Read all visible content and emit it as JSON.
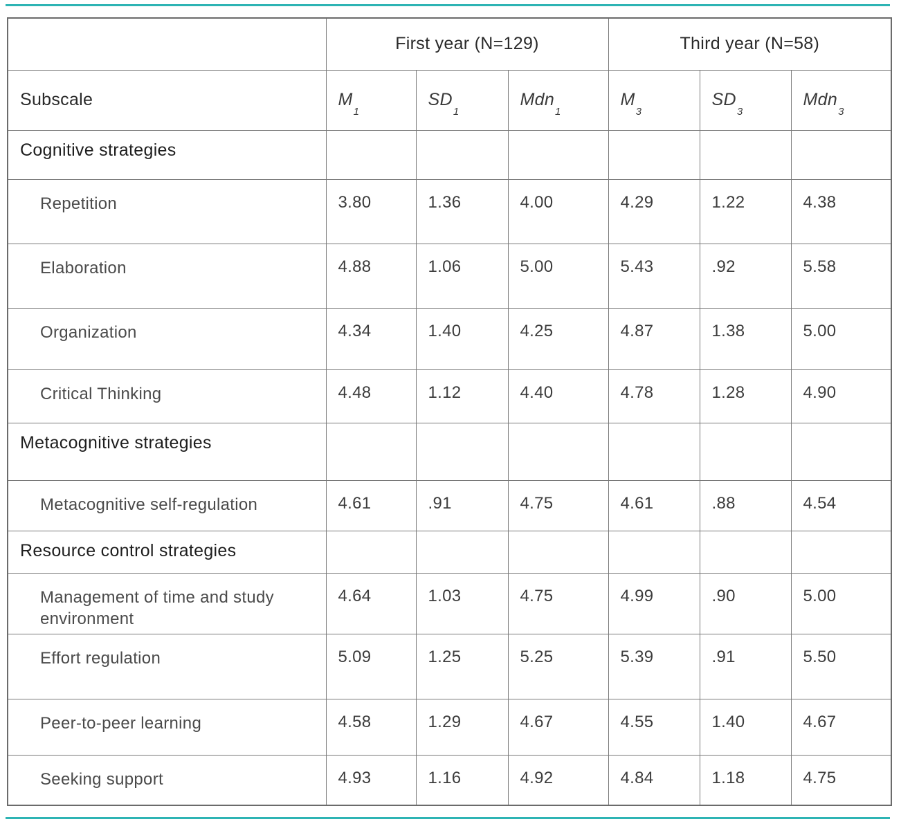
{
  "accent_color": "#2eb4b4",
  "table": {
    "group_headers": [
      {
        "label": "First year (N=129)",
        "span": 3
      },
      {
        "label": "Third year (N=58)",
        "span": 3
      }
    ],
    "column_headers": {
      "subscale": "Subscale",
      "stats": [
        {
          "base": "M",
          "sub": "1"
        },
        {
          "base": "SD",
          "sub": "1"
        },
        {
          "base": "Mdn",
          "sub": "1"
        },
        {
          "base": "M",
          "sub": "3"
        },
        {
          "base": "SD",
          "sub": "3"
        },
        {
          "base": "Mdn",
          "sub": "3"
        }
      ]
    },
    "rows": [
      {
        "type": "section",
        "label": "Cognitive strategies",
        "values": [
          "",
          "",
          "",
          "",
          "",
          ""
        ]
      },
      {
        "type": "item",
        "label": "Repetition",
        "values": [
          "3.80",
          "1.36",
          "4.00",
          "4.29",
          "1.22",
          "4.38"
        ]
      },
      {
        "type": "item",
        "label": "Elaboration",
        "values": [
          "4.88",
          "1.06",
          "5.00",
          "5.43",
          ".92",
          "5.58"
        ]
      },
      {
        "type": "item",
        "label": "Organization",
        "values": [
          "4.34",
          "1.40",
          "4.25",
          "4.87",
          "1.38",
          "5.00"
        ]
      },
      {
        "type": "item",
        "label": "Critical Thinking",
        "values": [
          "4.48",
          "1.12",
          "4.40",
          "4.78",
          "1.28",
          "4.90"
        ]
      },
      {
        "type": "section",
        "label": "Metacognitive strategies",
        "values": [
          "",
          "",
          "",
          "",
          "",
          ""
        ]
      },
      {
        "type": "item",
        "label": "Metacognitive self-regulation",
        "values": [
          "4.61",
          ".91",
          "4.75",
          "4.61",
          ".88",
          "4.54"
        ]
      },
      {
        "type": "section",
        "label": "Resource control strategies",
        "values": [
          "",
          "",
          "",
          "",
          "",
          ""
        ]
      },
      {
        "type": "item",
        "label": "Management of time and study environment",
        "values": [
          "4.64",
          "1.03",
          "4.75",
          "4.99",
          ".90",
          "5.00"
        ]
      },
      {
        "type": "item",
        "label": "Effort regulation",
        "values": [
          "5.09",
          "1.25",
          "5.25",
          "5.39",
          ".91",
          "5.50"
        ]
      },
      {
        "type": "item",
        "label": "Peer-to-peer learning",
        "values": [
          "4.58",
          "1.29",
          "4.67",
          "4.55",
          "1.40",
          "4.67"
        ]
      },
      {
        "type": "item",
        "label": "Seeking support",
        "values": [
          "4.93",
          "1.16",
          "4.92",
          "4.84",
          "1.18",
          "4.75"
        ]
      }
    ]
  }
}
